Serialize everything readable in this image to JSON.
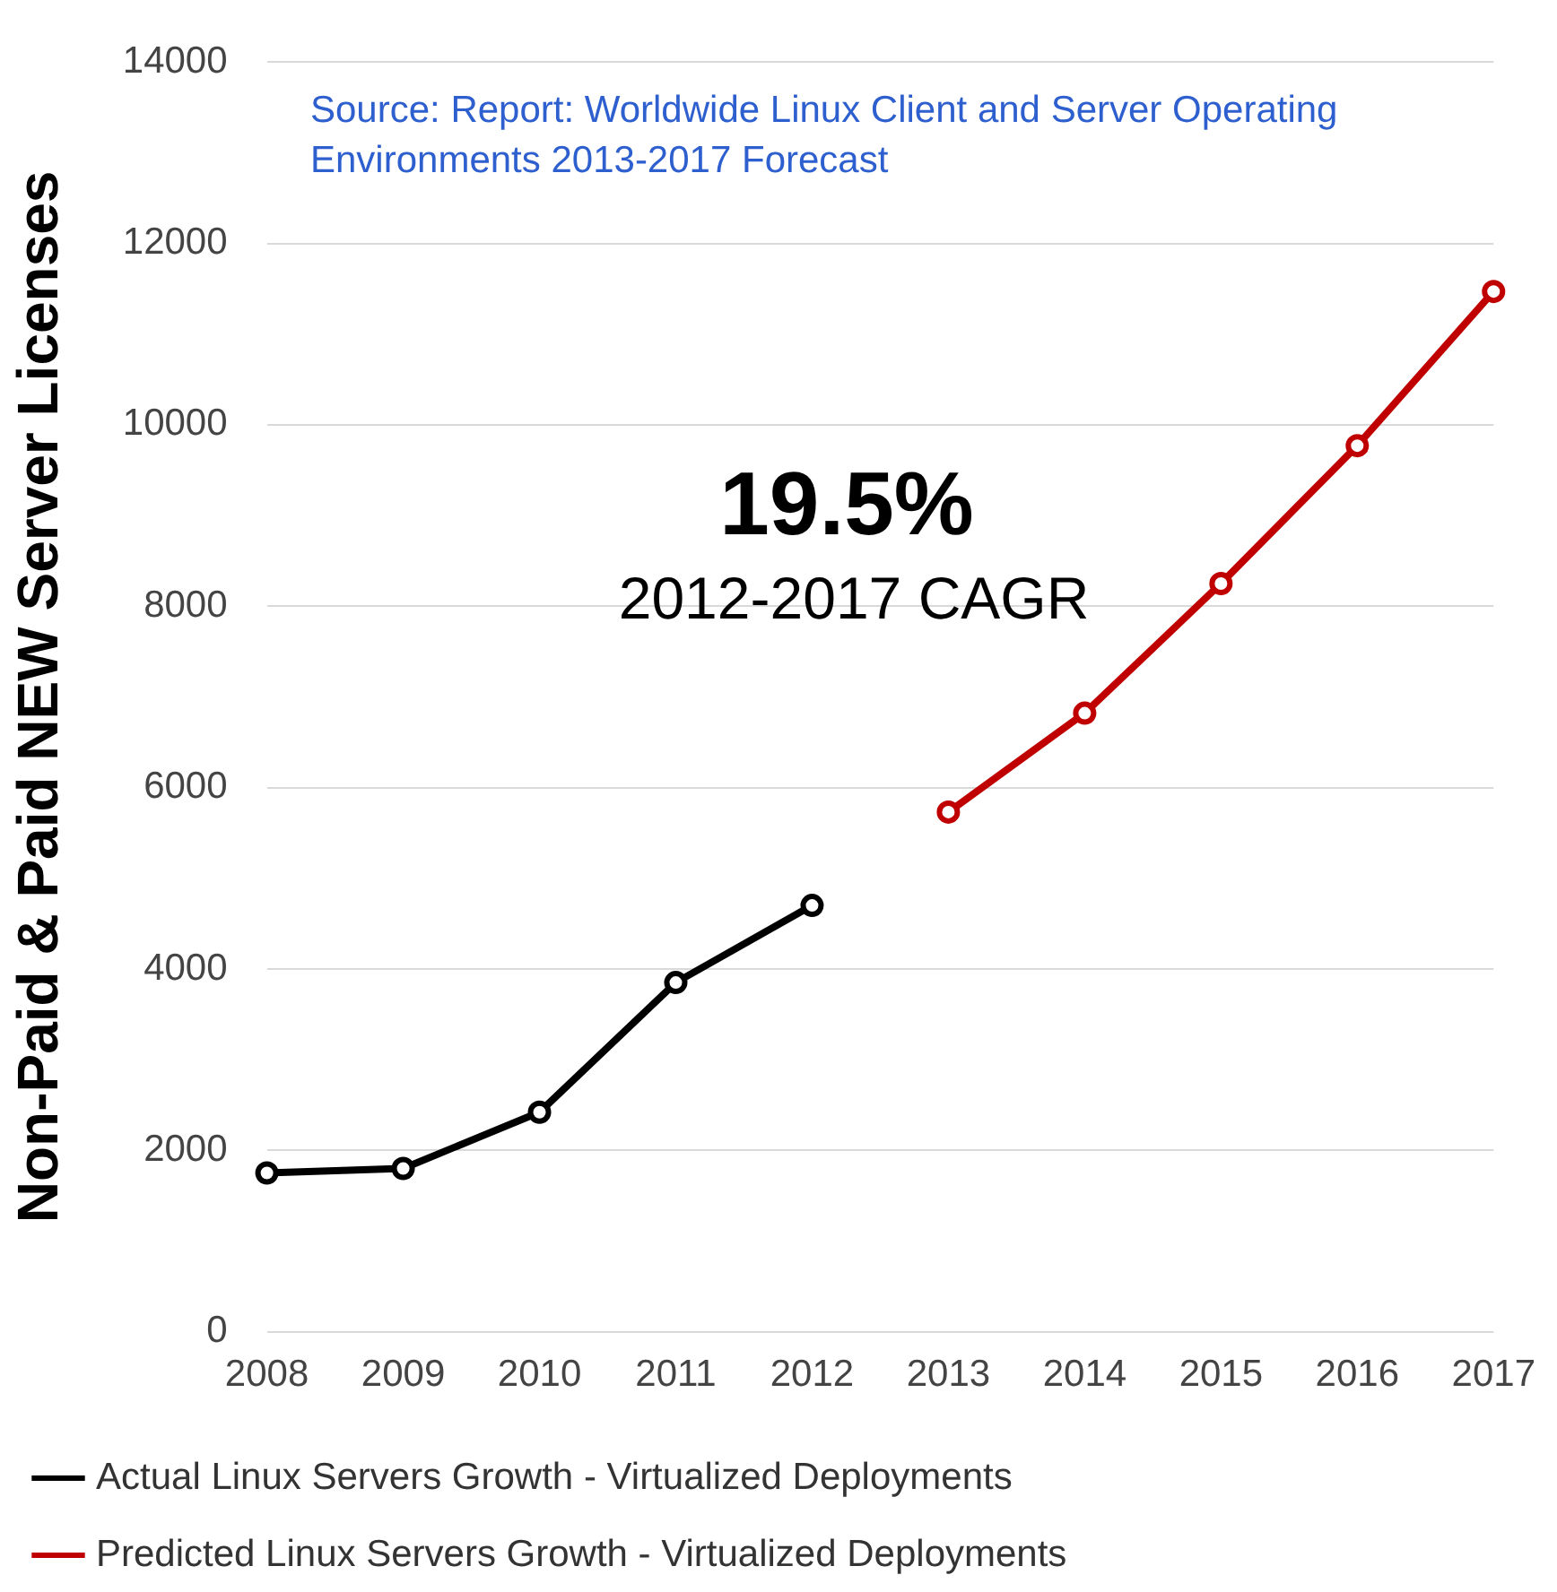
{
  "chart_data": {
    "type": "line",
    "ylabel": "Non-Paid & Paid NEW Server Licenses",
    "categories": [
      "2008",
      "2009",
      "2010",
      "2011",
      "2012",
      "2013",
      "2014",
      "2015",
      "2016",
      "2017"
    ],
    "series": [
      {
        "name": "Actual Linux Servers Growth - Virtualized Deployments",
        "color": "#000000",
        "values": [
          1750,
          1800,
          2420,
          3850,
          4700,
          null,
          null,
          null,
          null,
          null
        ]
      },
      {
        "name": "Predicted Linux Servers Growth - Virtualized Deployments",
        "color": "#c00000",
        "values": [
          null,
          null,
          null,
          null,
          null,
          5730,
          6820,
          8250,
          9770,
          11470
        ]
      }
    ],
    "ylim": [
      0,
      14000
    ],
    "yticks": [
      0,
      2000,
      4000,
      6000,
      8000,
      10000,
      12000,
      14000
    ],
    "grid": "y",
    "legend": "bottom",
    "marker": "circle",
    "line_style": "solid",
    "annotations": [
      "Source: Report: Worldwide Linux Client and Server Operating Environments 2013-2017 Forecast",
      "19.5%",
      "2012-2017 CAGR"
    ]
  }
}
